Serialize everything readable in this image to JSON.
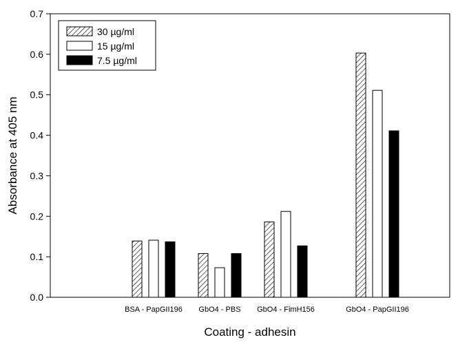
{
  "chart_data": {
    "type": "bar",
    "categories": [
      "BSA - PapGII196",
      "GbO4 - PBS",
      "GbO4 - FimH156",
      "GbO4 - PapGII196"
    ],
    "series": [
      {
        "name": "30 µg/ml",
        "values": [
          0.139,
          0.108,
          0.186,
          0.603
        ],
        "fill": "hatched"
      },
      {
        "name": "15 µg/ml",
        "values": [
          0.141,
          0.073,
          0.212,
          0.511
        ],
        "fill": "#ffffff"
      },
      {
        "name": "7.5 µg/ml",
        "values": [
          0.137,
          0.108,
          0.127,
          0.411
        ],
        "fill": "#000000"
      }
    ],
    "xlabel": "Coating - adhesin",
    "ylabel": "Absorbance at 405 nm",
    "ylim": [
      0,
      0.7
    ],
    "yticks": [
      "0.0",
      "0.1",
      "0.2",
      "0.3",
      "0.4",
      "0.5",
      "0.6",
      "0.7"
    ],
    "grid": false,
    "legend_position": "top-left"
  }
}
